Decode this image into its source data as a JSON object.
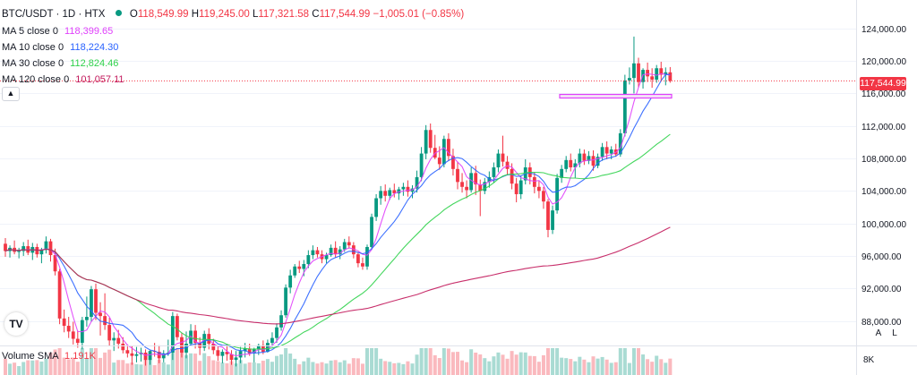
{
  "symbol": {
    "pair": "BTC/USDT",
    "interval": "1D",
    "exchange": "HTX",
    "open": "118,549.99",
    "high": "119,245.00",
    "low": "117,321.58",
    "close": "117,544.99",
    "change": "−1,005.01 (−0.85%)",
    "status_color": "#089981"
  },
  "moving_averages": [
    {
      "label": "MA 5 close 0",
      "value": "118,399.65",
      "color": "#e040fb"
    },
    {
      "label": "MA 10 close 0",
      "value": "118,224.30",
      "color": "#2962ff"
    },
    {
      "label": "MA 30 close 0",
      "value": "112,824.46",
      "color": "#2fd14b"
    },
    {
      "label": "MA 120 close 0",
      "value": "101,057.11",
      "color": "#c2185b"
    }
  ],
  "volume": {
    "label": "Volume SMA",
    "value": "1.191K",
    "tick": "8K"
  },
  "price_axis": {
    "ticks": [
      "124,000.00",
      "120,000.00",
      "116,000.00",
      "112,000.00",
      "108,000.00",
      "104,000.00",
      "100,000.00",
      "96,000.00",
      "92,000.00",
      "88,000.00"
    ],
    "current_price": "117,544.99",
    "buttons": [
      "A",
      "L"
    ]
  },
  "controls": {
    "collapse_icon": "chevron-up-icon",
    "logo": "TV"
  },
  "colors": {
    "up": "#089981",
    "down": "#f23645",
    "grid": "#f0f3fa",
    "axis_text": "#131722"
  },
  "chart_data": {
    "type": "candlestick",
    "title": "BTC/USDT · 1D · HTX",
    "ylim": [
      85200,
      127500
    ],
    "y_ticks": [
      124000,
      120000,
      116000,
      112000,
      108000,
      104000,
      100000,
      96000,
      92000,
      88000
    ],
    "current_price": 117544.99,
    "candles": [
      [
        97500,
        98200,
        95900,
        96600
      ],
      [
        96600,
        97300,
        95800,
        97000
      ],
      [
        97000,
        97900,
        96200,
        96500
      ],
      [
        96500,
        97000,
        95700,
        96600
      ],
      [
        96600,
        97700,
        96000,
        97200
      ],
      [
        97200,
        98000,
        96100,
        96400
      ],
      [
        96400,
        97600,
        95500,
        97100
      ],
      [
        97100,
        97500,
        95800,
        96200
      ],
      [
        96200,
        97000,
        95100,
        96800
      ],
      [
        96800,
        98400,
        96300,
        97800
      ],
      [
        97800,
        98100,
        95300,
        96100
      ],
      [
        96100,
        96900,
        93600,
        94100
      ],
      [
        94100,
        94400,
        87600,
        88300
      ],
      [
        88300,
        89400,
        86600,
        87400
      ],
      [
        87400,
        88500,
        85900,
        86700
      ],
      [
        86700,
        87900,
        85100,
        85800
      ],
      [
        85800,
        86800,
        84700,
        85300
      ],
      [
        85300,
        88500,
        84500,
        88100
      ],
      [
        88100,
        91000,
        87300,
        88500
      ],
      [
        88500,
        92300,
        87900,
        91900
      ],
      [
        91900,
        92600,
        88100,
        89000
      ],
      [
        89000,
        90300,
        86200,
        88600
      ],
      [
        88600,
        91400,
        86900,
        87500
      ],
      [
        87500,
        88400,
        84900,
        85600
      ],
      [
        85600,
        86600,
        84300,
        85900
      ],
      [
        85900,
        86900,
        84600,
        85200
      ],
      [
        85200,
        86000,
        84000,
        84400
      ],
      [
        84400,
        85100,
        83500,
        84000
      ],
      [
        84000,
        84900,
        82600,
        83700
      ],
      [
        83700,
        84800,
        82900,
        83900
      ],
      [
        83900,
        84700,
        83000,
        84100
      ],
      [
        84100,
        84500,
        82500,
        83200
      ],
      [
        83200,
        84400,
        82600,
        84300
      ],
      [
        84300,
        85300,
        83600,
        84200
      ],
      [
        84200,
        85000,
        82800,
        83400
      ],
      [
        83400,
        84400,
        82900,
        84000
      ],
      [
        84000,
        85700,
        83700,
        84100
      ],
      [
        84100,
        89100,
        83200,
        88600
      ],
      [
        88600,
        88900,
        85600,
        86000
      ],
      [
        86000,
        86500,
        83500,
        84100
      ],
      [
        84100,
        86700,
        83400,
        85200
      ],
      [
        85200,
        87600,
        84900,
        86800
      ],
      [
        86800,
        87500,
        84600,
        85300
      ],
      [
        85300,
        86000,
        83800,
        84700
      ],
      [
        84700,
        86800,
        84300,
        86400
      ],
      [
        86400,
        87100,
        84500,
        85200
      ],
      [
        85200,
        85800,
        83900,
        84400
      ],
      [
        84400,
        84900,
        83100,
        83700
      ],
      [
        83700,
        84500,
        82800,
        84200
      ],
      [
        84200,
        85100,
        83100,
        83900
      ],
      [
        83900,
        84400,
        82600,
        83200
      ],
      [
        83200,
        84300,
        82400,
        83500
      ],
      [
        83500,
        84800,
        82800,
        84300
      ],
      [
        84300,
        85300,
        83500,
        84600
      ],
      [
        84600,
        85200,
        83700,
        84000
      ],
      [
        84000,
        84700,
        82900,
        84500
      ],
      [
        84500,
        85200,
        83800,
        85000
      ],
      [
        85000,
        85600,
        83900,
        84200
      ],
      [
        84200,
        85700,
        84100,
        85300
      ],
      [
        85300,
        86600,
        84800,
        85900
      ],
      [
        85900,
        87700,
        85300,
        87200
      ],
      [
        87200,
        89300,
        86800,
        88700
      ],
      [
        88700,
        92500,
        88400,
        92100
      ],
      [
        92100,
        94300,
        91400,
        93600
      ],
      [
        93600,
        95000,
        93300,
        94700
      ],
      [
        94700,
        95400,
        93900,
        94400
      ],
      [
        94400,
        95500,
        93500,
        95000
      ],
      [
        95000,
        96700,
        94500,
        96100
      ],
      [
        96100,
        97300,
        95600,
        96700
      ],
      [
        96700,
        97100,
        95800,
        96200
      ],
      [
        96200,
        96700,
        95100,
        95600
      ],
      [
        95600,
        96400,
        95100,
        96100
      ],
      [
        96100,
        97400,
        95900,
        97000
      ],
      [
        97000,
        97800,
        95800,
        96200
      ],
      [
        96200,
        97200,
        95600,
        96800
      ],
      [
        96800,
        98100,
        96500,
        97700
      ],
      [
        97700,
        98400,
        96900,
        97300
      ],
      [
        97300,
        97700,
        95700,
        96200
      ],
      [
        96200,
        96500,
        94600,
        95100
      ],
      [
        95100,
        95800,
        94300,
        94700
      ],
      [
        94700,
        97400,
        94300,
        97100
      ],
      [
        97100,
        101200,
        96900,
        100800
      ],
      [
        100800,
        103600,
        100300,
        103100
      ],
      [
        103100,
        104600,
        102300,
        104000
      ],
      [
        104000,
        104800,
        102700,
        103400
      ],
      [
        103400,
        104400,
        102900,
        104100
      ],
      [
        104100,
        104900,
        103200,
        103700
      ],
      [
        103700,
        104500,
        102900,
        104200
      ],
      [
        104200,
        105000,
        103400,
        104500
      ],
      [
        104500,
        105300,
        103300,
        103900
      ],
      [
        103900,
        104700,
        103100,
        104300
      ],
      [
        104300,
        106500,
        103800,
        105700
      ],
      [
        105700,
        109400,
        105200,
        108600
      ],
      [
        108600,
        112100,
        107900,
        111500
      ],
      [
        111500,
        112300,
        108700,
        109300
      ],
      [
        109300,
        110900,
        107900,
        108100
      ],
      [
        108100,
        109500,
        106600,
        107300
      ],
      [
        107300,
        110800,
        106900,
        110400
      ],
      [
        110400,
        111100,
        107700,
        108300
      ],
      [
        108300,
        109200,
        105900,
        106700
      ],
      [
        106700,
        107600,
        104200,
        105100
      ],
      [
        105100,
        106200,
        103800,
        104500
      ],
      [
        104500,
        105300,
        103100,
        104100
      ],
      [
        104100,
        106900,
        103800,
        106200
      ],
      [
        106200,
        107100,
        103500,
        104800
      ],
      [
        104800,
        105400,
        100900,
        104000
      ],
      [
        104000,
        105600,
        103600,
        105100
      ],
      [
        105100,
        106400,
        104400,
        105700
      ],
      [
        105700,
        107500,
        105000,
        106900
      ],
      [
        106900,
        109100,
        106300,
        108600
      ],
      [
        108600,
        110800,
        107000,
        107600
      ],
      [
        107600,
        108300,
        106000,
        106700
      ],
      [
        106700,
        107400,
        104200,
        104900
      ],
      [
        104900,
        105600,
        102600,
        103600
      ],
      [
        103600,
        105900,
        103000,
        105300
      ],
      [
        105300,
        107900,
        104800,
        106900
      ],
      [
        106900,
        107500,
        104800,
        105700
      ],
      [
        105700,
        106300,
        103700,
        104500
      ],
      [
        104500,
        105200,
        103100,
        104000
      ],
      [
        104000,
        104500,
        101800,
        102700
      ],
      [
        102700,
        103000,
        98300,
        99200
      ],
      [
        99200,
        102200,
        98700,
        101600
      ],
      [
        101600,
        106100,
        101200,
        105600
      ],
      [
        105600,
        107200,
        105000,
        106700
      ],
      [
        106700,
        108300,
        106300,
        107800
      ],
      [
        107800,
        108600,
        106400,
        106900
      ],
      [
        106900,
        107900,
        105600,
        107400
      ],
      [
        107400,
        109200,
        106900,
        108600
      ],
      [
        108600,
        109100,
        107200,
        107700
      ],
      [
        107700,
        108900,
        107300,
        108300
      ],
      [
        108300,
        109000,
        106500,
        107100
      ],
      [
        107100,
        108600,
        106800,
        108200
      ],
      [
        108200,
        109900,
        107700,
        109400
      ],
      [
        109400,
        110100,
        107900,
        108600
      ],
      [
        108600,
        109500,
        107900,
        109100
      ],
      [
        109100,
        109800,
        108200,
        108500
      ],
      [
        108500,
        111600,
        108200,
        111100
      ],
      [
        111100,
        118300,
        110700,
        117600
      ],
      [
        117600,
        119200,
        117100,
        117900
      ],
      [
        117900,
        123000,
        116000,
        119700
      ],
      [
        119700,
        120400,
        116700,
        117400
      ],
      [
        117400,
        119100,
        116600,
        118900
      ],
      [
        118900,
        119800,
        117400,
        118100
      ],
      [
        118100,
        119100,
        116700,
        117700
      ],
      [
        117700,
        119500,
        117300,
        119100
      ],
      [
        119100,
        119900,
        117500,
        118300
      ],
      [
        118300,
        119200,
        117000,
        118600
      ],
      [
        118600,
        119245,
        117321.58,
        117544.99
      ]
    ]
  }
}
